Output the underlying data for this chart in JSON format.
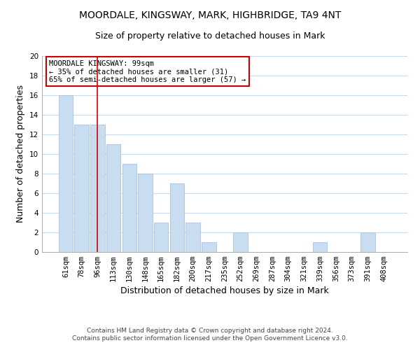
{
  "title": "MOORDALE, KINGSWAY, MARK, HIGHBRIDGE, TA9 4NT",
  "subtitle": "Size of property relative to detached houses in Mark",
  "xlabel": "Distribution of detached houses by size in Mark",
  "ylabel": "Number of detached properties",
  "bar_labels": [
    "61sqm",
    "78sqm",
    "96sqm",
    "113sqm",
    "130sqm",
    "148sqm",
    "165sqm",
    "182sqm",
    "200sqm",
    "217sqm",
    "235sqm",
    "252sqm",
    "269sqm",
    "287sqm",
    "304sqm",
    "321sqm",
    "339sqm",
    "356sqm",
    "373sqm",
    "391sqm",
    "408sqm"
  ],
  "bar_values": [
    16,
    13,
    13,
    11,
    9,
    8,
    3,
    7,
    3,
    1,
    0,
    2,
    0,
    0,
    0,
    0,
    1,
    0,
    0,
    2,
    0
  ],
  "bar_color": "#c9ddf0",
  "bar_edge_color": "#a8c4de",
  "vline_x_index": 2,
  "vline_color": "#cc0000",
  "ylim": [
    0,
    20
  ],
  "yticks": [
    0,
    2,
    4,
    6,
    8,
    10,
    12,
    14,
    16,
    18,
    20
  ],
  "annotation_title": "MOORDALE KINGSWAY: 99sqm",
  "annotation_line1": "← 35% of detached houses are smaller (31)",
  "annotation_line2": "65% of semi-detached houses are larger (57) →",
  "annotation_box_color": "#ffffff",
  "annotation_box_edge": "#cc0000",
  "footer_line1": "Contains HM Land Registry data © Crown copyright and database right 2024.",
  "footer_line2": "Contains public sector information licensed under the Open Government Licence v3.0.",
  "background_color": "#ffffff",
  "grid_color": "#c8d8ea",
  "title_fontsize": 10,
  "subtitle_fontsize": 9,
  "axis_label_fontsize": 9,
  "tick_fontsize": 7.5,
  "footer_fontsize": 6.5
}
